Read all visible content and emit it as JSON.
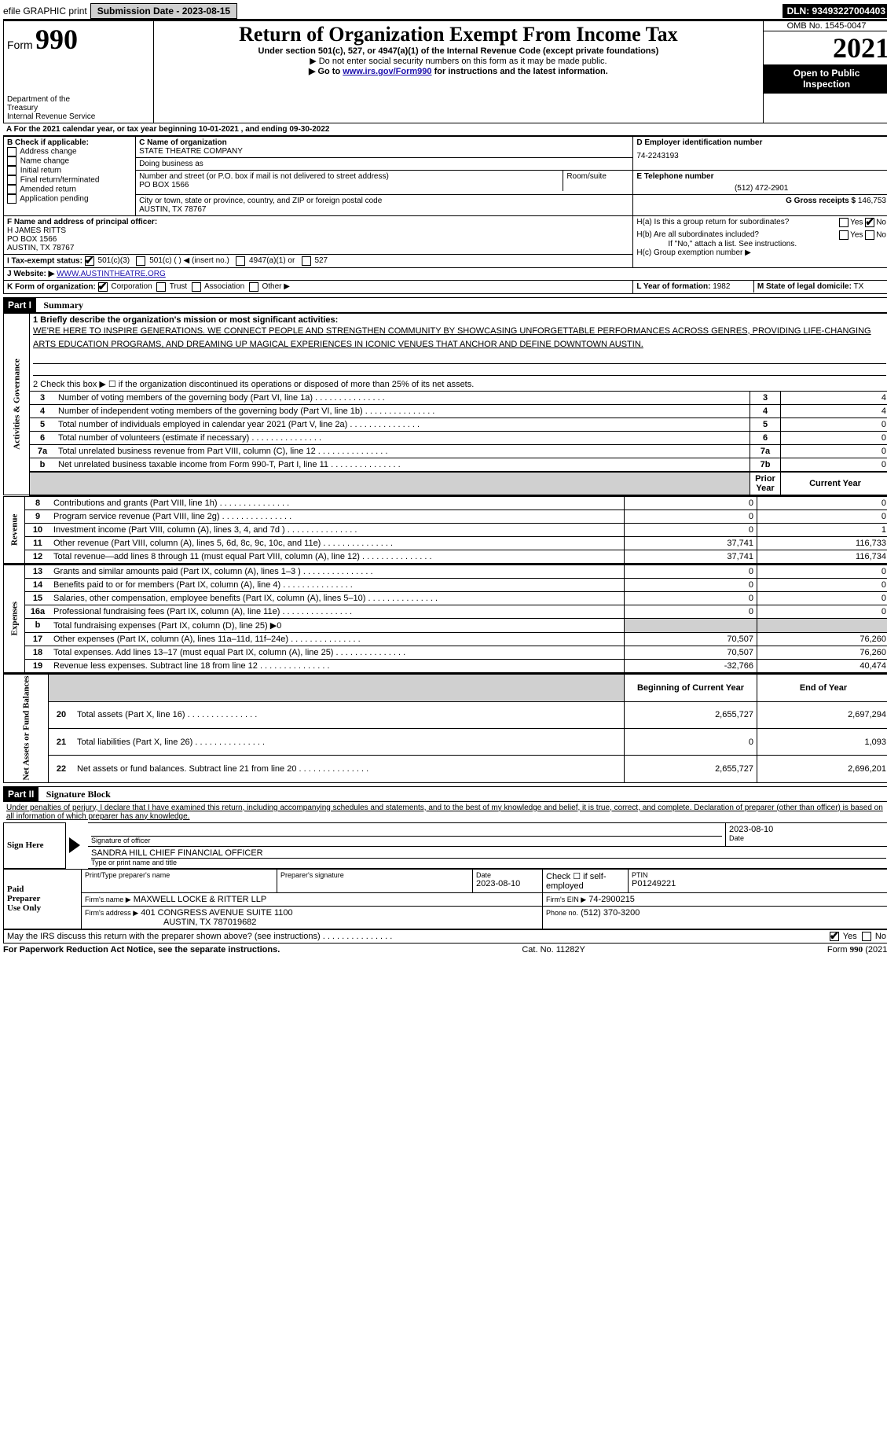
{
  "topbar": {
    "efile": "efile GRAPHIC print",
    "submission_label": "Submission Date - 2023-08-15",
    "dln": "DLN: 93493227004403"
  },
  "header": {
    "form_word": "Form",
    "form_number": "990",
    "title": "Return of Organization Exempt From Income Tax",
    "subtitle": "Under section 501(c), 527, or 4947(a)(1) of the Internal Revenue Code (except private foundations)",
    "ssn_note": "▶ Do not enter social security numbers on this form as it may be made public.",
    "goto_prefix": "▶ Go to ",
    "goto_link": "www.irs.gov/Form990",
    "goto_suffix": " for instructions and the latest information.",
    "omb": "OMB No. 1545-0047",
    "year": "2021",
    "open_public": "Open to Public\nInspection",
    "dept": "Department of the Treasury\nInternal Revenue Service"
  },
  "period": "A For the 2021 calendar year, or tax year beginning 10-01-2021    , and ending 09-30-2022",
  "sectionB": {
    "label": "B Check if applicable:",
    "options": [
      "Address change",
      "Name change",
      "Initial return",
      "Final return/terminated",
      "Amended return",
      "Application pending"
    ]
  },
  "sectionC": {
    "label": "C Name of organization",
    "name": "STATE THEATRE COMPANY",
    "dba_label": "Doing business as",
    "dba": "",
    "addr_label": "Number and street (or P.O. box if mail is not delivered to street address)",
    "room_label": "Room/suite",
    "address": "PO BOX 1566",
    "city_label": "City or town, state or province, country, and ZIP or foreign postal code",
    "city": "AUSTIN, TX  78767"
  },
  "sectionD": {
    "label": "D Employer identification number",
    "ein": "74-2243193"
  },
  "sectionE": {
    "label": "E Telephone number",
    "phone": "(512) 472-2901"
  },
  "sectionG": {
    "label": "G Gross receipts $",
    "amount": "146,753"
  },
  "sectionF": {
    "label": "F Name and address of principal officer:",
    "name": "H JAMES RITTS",
    "addr1": "PO BOX 1566",
    "addr2": "AUSTIN, TX  78767"
  },
  "sectionH": {
    "a_label": "H(a)  Is this a group return for subordinates?",
    "b_label": "H(b)  Are all subordinates included?",
    "note": "If \"No,\" attach a list. See instructions.",
    "c_label": "H(c)  Group exemption number ▶",
    "yes": "Yes",
    "no": "No"
  },
  "sectionI": {
    "label": "I   Tax-exempt status:",
    "options": [
      "501(c)(3)",
      "501(c) (   ) ◀ (insert no.)",
      "4947(a)(1) or",
      "527"
    ]
  },
  "sectionJ": {
    "label": "J   Website: ▶",
    "url": "WWW.AUSTINTHEATRE.ORG"
  },
  "sectionK": {
    "label": "K Form of organization:",
    "options": [
      "Corporation",
      "Trust",
      "Association",
      "Other ▶"
    ]
  },
  "sectionL": {
    "label": "L Year of formation:",
    "value": "1982"
  },
  "sectionM": {
    "label": "M State of legal domicile:",
    "value": "TX"
  },
  "part1": {
    "header": "Part I",
    "title": "Summary",
    "tabs": [
      "Activities & Governance",
      "Revenue",
      "Expenses",
      "Net Assets or Fund Balances"
    ],
    "line1_label": "1   Briefly describe the organization's mission or most significant activities:",
    "line1_text": "WE'RE HERE TO INSPIRE GENERATIONS. WE CONNECT PEOPLE AND STRENGTHEN COMMUNITY BY SHOWCASING UNFORGETTABLE PERFORMANCES ACROSS GENRES, PROVIDING LIFE-CHANGING ARTS EDUCATION PROGRAMS, AND DREAMING UP MAGICAL EXPERIENCES IN ICONIC VENUES THAT ANCHOR AND DEFINE DOWNTOWN AUSTIN.",
    "line2": "2   Check this box ▶ ☐ if the organization discontinued its operations or disposed of more than 25% of its net assets.",
    "governance_rows": [
      {
        "n": "3",
        "label": "Number of voting members of the governing body (Part VI, line 1a)",
        "box": "3",
        "val": "4"
      },
      {
        "n": "4",
        "label": "Number of independent voting members of the governing body (Part VI, line 1b)",
        "box": "4",
        "val": "4"
      },
      {
        "n": "5",
        "label": "Total number of individuals employed in calendar year 2021 (Part V, line 2a)",
        "box": "5",
        "val": "0"
      },
      {
        "n": "6",
        "label": "Total number of volunteers (estimate if necessary)",
        "box": "6",
        "val": "0"
      },
      {
        "n": "7a",
        "label": "Total unrelated business revenue from Part VIII, column (C), line 12",
        "box": "7a",
        "val": "0"
      },
      {
        "n": "b",
        "label": "Net unrelated business taxable income from Form 990-T, Part I, line 11",
        "box": "7b",
        "val": "0"
      }
    ],
    "col_prior": "Prior Year",
    "col_current": "Current Year",
    "revenue_rows": [
      {
        "n": "8",
        "label": "Contributions and grants (Part VIII, line 1h)",
        "prior": "0",
        "curr": "0"
      },
      {
        "n": "9",
        "label": "Program service revenue (Part VIII, line 2g)",
        "prior": "0",
        "curr": "0"
      },
      {
        "n": "10",
        "label": "Investment income (Part VIII, column (A), lines 3, 4, and 7d )",
        "prior": "0",
        "curr": "1"
      },
      {
        "n": "11",
        "label": "Other revenue (Part VIII, column (A), lines 5, 6d, 8c, 9c, 10c, and 11e)",
        "prior": "37,741",
        "curr": "116,733"
      },
      {
        "n": "12",
        "label": "Total revenue—add lines 8 through 11 (must equal Part VIII, column (A), line 12)",
        "prior": "37,741",
        "curr": "116,734"
      }
    ],
    "expense_rows": [
      {
        "n": "13",
        "label": "Grants and similar amounts paid (Part IX, column (A), lines 1–3 )",
        "prior": "0",
        "curr": "0"
      },
      {
        "n": "14",
        "label": "Benefits paid to or for members (Part IX, column (A), line 4)",
        "prior": "0",
        "curr": "0"
      },
      {
        "n": "15",
        "label": "Salaries, other compensation, employee benefits (Part IX, column (A), lines 5–10)",
        "prior": "0",
        "curr": "0"
      },
      {
        "n": "16a",
        "label": "Professional fundraising fees (Part IX, column (A), line 11e)",
        "prior": "0",
        "curr": "0"
      },
      {
        "n": "b",
        "label": "Total fundraising expenses (Part IX, column (D), line 25) ▶0",
        "prior": "",
        "curr": "",
        "grey": true
      },
      {
        "n": "17",
        "label": "Other expenses (Part IX, column (A), lines 11a–11d, 11f–24e)",
        "prior": "70,507",
        "curr": "76,260"
      },
      {
        "n": "18",
        "label": "Total expenses. Add lines 13–17 (must equal Part IX, column (A), line 25)",
        "prior": "70,507",
        "curr": "76,260"
      },
      {
        "n": "19",
        "label": "Revenue less expenses. Subtract line 18 from line 12",
        "prior": "-32,766",
        "curr": "40,474"
      }
    ],
    "col_beg": "Beginning of Current Year",
    "col_end": "End of Year",
    "net_rows": [
      {
        "n": "20",
        "label": "Total assets (Part X, line 16)",
        "prior": "2,655,727",
        "curr": "2,697,294"
      },
      {
        "n": "21",
        "label": "Total liabilities (Part X, line 26)",
        "prior": "0",
        "curr": "1,093"
      },
      {
        "n": "22",
        "label": "Net assets or fund balances. Subtract line 21 from line 20",
        "prior": "2,655,727",
        "curr": "2,696,201"
      }
    ]
  },
  "part2": {
    "header": "Part II",
    "title": "Signature Block",
    "declaration": "Under penalties of perjury, I declare that I have examined this return, including accompanying schedules and statements, and to the best of my knowledge and belief, it is true, correct, and complete. Declaration of preparer (other than officer) is based on all information of which preparer has any knowledge.",
    "sign_here": "Sign Here",
    "sig_officer_label": "Signature of officer",
    "date_label": "Date",
    "sig_date": "2023-08-10",
    "officer_name": "SANDRA HILL  CHIEF FINANCIAL OFFICER",
    "name_title_label": "Type or print name and title",
    "paid_preparer": "Paid Preparer Use Only",
    "prep_name_label": "Print/Type preparer's name",
    "prep_sig_label": "Preparer's signature",
    "prep_date_label": "Date",
    "prep_date": "2023-08-10",
    "self_emp": "Check ☐ if self-employed",
    "ptin_label": "PTIN",
    "ptin": "P01249221",
    "firm_name_label": "Firm's name    ▶",
    "firm_name": "MAXWELL LOCKE & RITTER LLP",
    "firm_ein_label": "Firm's EIN ▶",
    "firm_ein": "74-2900215",
    "firm_addr_label": "Firm's address ▶",
    "firm_addr1": "401 CONGRESS AVENUE SUITE 1100",
    "firm_addr2": "AUSTIN, TX  787019682",
    "firm_phone_label": "Phone no.",
    "firm_phone": "(512) 370-3200",
    "discuss": "May the IRS discuss this return with the preparer shown above? (see instructions)"
  },
  "footer": {
    "paperwork": "For Paperwork Reduction Act Notice, see the separate instructions.",
    "cat": "Cat. No. 11282Y",
    "form": "Form 990 (2021)"
  }
}
